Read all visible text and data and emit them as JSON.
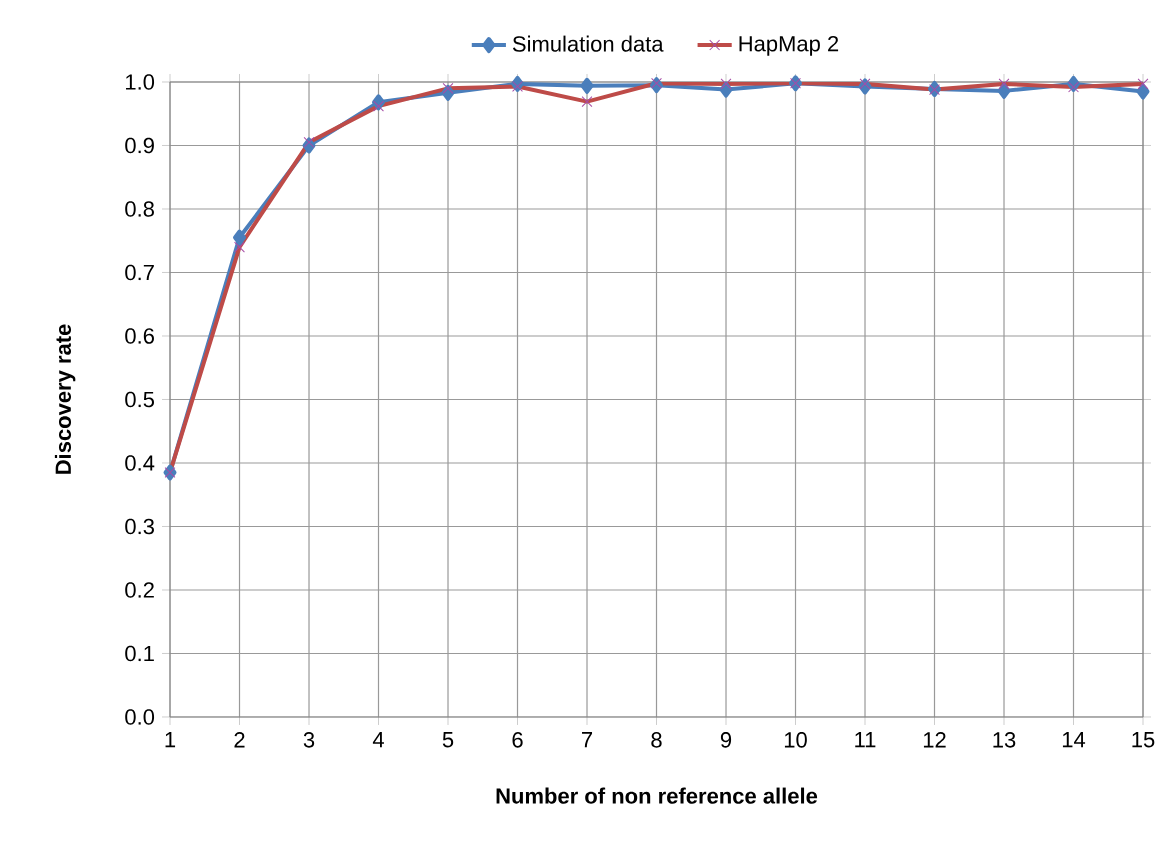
{
  "chart_data": {
    "type": "line",
    "xlabel": "Number of non reference allele",
    "ylabel": "Discovery rate",
    "categories": [
      "1",
      "2",
      "3",
      "4",
      "5",
      "6",
      "7",
      "8",
      "9",
      "10",
      "11",
      "12",
      "13",
      "14",
      "15"
    ],
    "series": [
      {
        "name": "Simulation data",
        "color": "#4a7ebb",
        "marker": "diamond",
        "values": [
          0.385,
          0.755,
          0.9,
          0.968,
          0.983,
          0.997,
          0.994,
          0.995,
          0.988,
          0.998,
          0.993,
          0.989,
          0.986,
          0.997,
          0.985
        ]
      },
      {
        "name": "HapMap 2",
        "color": "#be4b48",
        "marker": "cross",
        "values": [
          0.385,
          0.74,
          0.905,
          0.962,
          0.99,
          0.993,
          0.969,
          0.998,
          0.997,
          0.998,
          0.997,
          0.988,
          0.997,
          0.992,
          0.997
        ]
      }
    ],
    "ylim": [
      0,
      1
    ],
    "yticks": [
      {
        "value": 0,
        "label": "0.0"
      },
      {
        "value": 0.1,
        "label": "0.1"
      },
      {
        "value": 0.2,
        "label": "0.2"
      },
      {
        "value": 0.3,
        "label": "0.3"
      },
      {
        "value": 0.4,
        "label": "0.4"
      },
      {
        "value": 0.5,
        "label": "0.5"
      },
      {
        "value": 0.6,
        "label": "0.6"
      },
      {
        "value": 0.7,
        "label": "0.7"
      },
      {
        "value": 0.8,
        "label": "0.8"
      },
      {
        "value": 0.9,
        "label": "0.9"
      },
      {
        "value": 1,
        "label": "1.0"
      }
    ],
    "grid": true,
    "legend": "top",
    "line_style": "solid"
  }
}
